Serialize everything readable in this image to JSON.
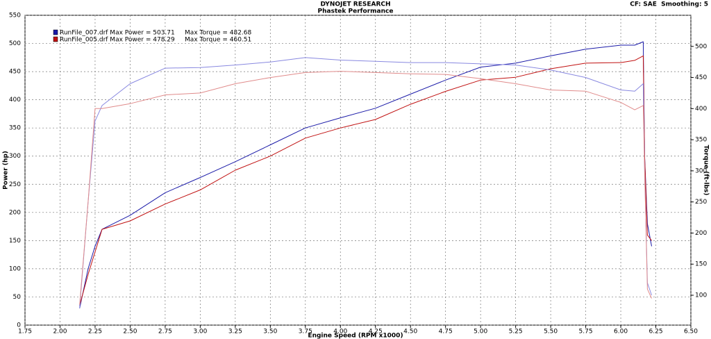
{
  "chart_data": {
    "type": "line",
    "title": "DYNOJET RESEARCH",
    "subtitle": "Phastek Performance",
    "corner_note": "CF: SAE  Smoothing: 5",
    "x_label": "Engine Speed (RPM x1000)",
    "y_label": "Power (hp)",
    "y2_label": "Torque (ft-lbs)",
    "grid": true,
    "legend_position": "top-left",
    "legend": [
      {
        "label": "RunFile_007.drf Max Power = 503.71     Max Torque = 482.68",
        "color": "#1a1aa8"
      },
      {
        "label": "RunFile_005.drf Max Power = 478.29     Max Torque = 460.51",
        "color": "#c01010"
      }
    ],
    "xlim": [
      1.75,
      6.5
    ],
    "xticks": [
      1.75,
      {
        "value": 2,
        "label": "2.00"
      },
      2.25,
      {
        "value": 2.5,
        "label": "2.50"
      },
      2.75,
      {
        "value": 3,
        "label": "3.00"
      },
      3.25,
      {
        "value": 3.5,
        "label": "3.50"
      },
      3.75,
      {
        "value": 4,
        "label": "4.00"
      },
      4.25,
      {
        "value": 4.5,
        "label": "4.50"
      },
      4.75,
      {
        "value": 5,
        "label": "5.00"
      },
      5.25,
      {
        "value": 5.5,
        "label": "5.50"
      },
      5.75,
      {
        "value": 6,
        "label": "6.00"
      },
      6.25,
      {
        "value": 6.5,
        "label": "6.50"
      }
    ],
    "ylim": [
      0,
      550
    ],
    "yticks": [
      0,
      50,
      100,
      150,
      200,
      250,
      300,
      350,
      400,
      450,
      500,
      550
    ],
    "y2lim": [
      52,
      550
    ],
    "y2ticks": [
      100,
      150,
      200,
      250,
      300,
      350,
      400,
      450,
      500
    ],
    "x": [
      2.14,
      2.2,
      2.25,
      2.3,
      2.5,
      2.75,
      3.0,
      3.25,
      3.5,
      3.75,
      4.0,
      4.25,
      4.5,
      4.75,
      5.0,
      5.25,
      5.5,
      5.75,
      6.0,
      6.1,
      6.16,
      6.17,
      6.19,
      6.22
    ],
    "series": [
      {
        "color": "#1a1aa8",
        "axis": "y",
        "values": [
          30,
          100,
          140,
          170,
          195,
          235,
          262,
          290,
          320,
          350,
          368,
          385,
          410,
          435,
          458,
          465,
          478,
          490,
          497,
          497,
          503,
          300,
          180,
          140
        ]
      },
      {
        "color": "#c01010",
        "axis": "y",
        "values": [
          35,
          90,
          130,
          170,
          185,
          215,
          240,
          275,
          300,
          332,
          350,
          365,
          392,
          415,
          435,
          440,
          455,
          465,
          466,
          470,
          478,
          300,
          160,
          150
        ]
      },
      {
        "color": "#8888e0",
        "axis": "y2",
        "values": [
          80,
          250,
          380,
          405,
          440,
          465,
          466,
          470,
          475,
          482,
          478,
          476,
          474,
          474,
          472,
          470,
          462,
          450,
          430,
          428,
          440,
          300,
          120,
          100
        ]
      },
      {
        "color": "#e08a8a",
        "axis": "y2",
        "values": [
          85,
          250,
          400,
          400,
          408,
          422,
          425,
          440,
          450,
          458,
          460,
          458,
          456,
          455,
          448,
          440,
          430,
          428,
          410,
          398,
          405,
          300,
          110,
          95
        ]
      }
    ]
  }
}
